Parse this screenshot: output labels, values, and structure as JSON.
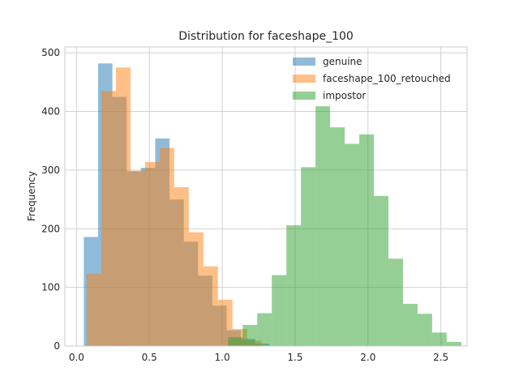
{
  "chart_data": {
    "type": "bar",
    "title": "Distribution for faceshape_100",
    "xlabel": "",
    "ylabel": "Frequency",
    "xlim": [
      -0.08,
      2.68
    ],
    "ylim": [
      0,
      510
    ],
    "xticks": [
      0.0,
      0.5,
      1.0,
      1.5,
      2.0,
      2.5
    ],
    "xtick_labels": [
      "0.0",
      "0.5",
      "1.0",
      "1.5",
      "2.0",
      "2.5"
    ],
    "yticks": [
      0,
      100,
      200,
      300,
      400,
      500
    ],
    "ytick_labels": [
      "0",
      "100",
      "200",
      "300",
      "400",
      "500"
    ],
    "grid": true,
    "legend_position": "top-right",
    "series": [
      {
        "name": "genuine",
        "color": "#1f77b4",
        "alpha": 0.5,
        "bin_edges": [
          0.05,
          0.148,
          0.246,
          0.344,
          0.442,
          0.54,
          0.638,
          0.736,
          0.834,
          0.932,
          1.03,
          1.128,
          1.226,
          1.324
        ],
        "counts": [
          186,
          482,
          425,
          298,
          304,
          354,
          250,
          178,
          120,
          69,
          27,
          12,
          4
        ]
      },
      {
        "name": "faceshape_100_retouched",
        "color": "#ff7f0e",
        "alpha": 0.5,
        "bin_edges": [
          0.07,
          0.17,
          0.27,
          0.37,
          0.47,
          0.57,
          0.67,
          0.77,
          0.87,
          0.97,
          1.07,
          1.17,
          1.27
        ],
        "counts": [
          123,
          435,
          475,
          299,
          314,
          338,
          271,
          194,
          136,
          79,
          29,
          9
        ]
      },
      {
        "name": "impostor",
        "color": "#2ca02c",
        "alpha": 0.5,
        "bin_edges": [
          1.04,
          1.14,
          1.24,
          1.34,
          1.44,
          1.54,
          1.64,
          1.74,
          1.84,
          1.94,
          2.04,
          2.14,
          2.24,
          2.34,
          2.44,
          2.54,
          2.64
        ],
        "counts": [
          15,
          36,
          56,
          121,
          206,
          305,
          409,
          373,
          345,
          361,
          256,
          149,
          72,
          55,
          23,
          7
        ]
      }
    ]
  }
}
